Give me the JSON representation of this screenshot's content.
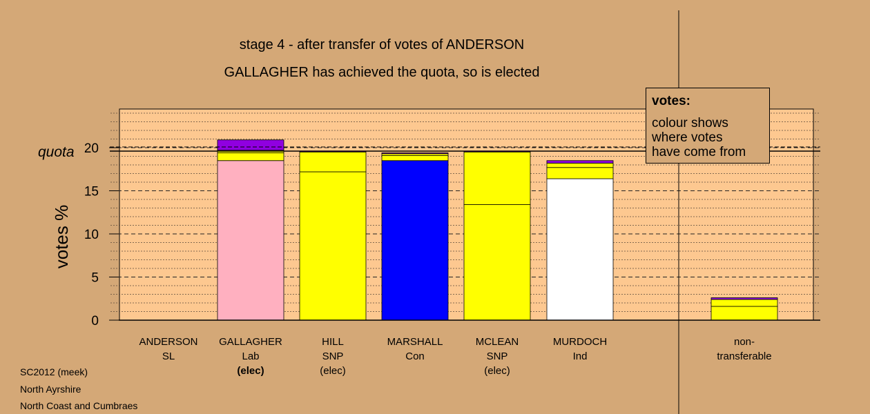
{
  "title_line1": "stage 4 - after transfer of votes of ANDERSON",
  "title_line2": "GALLAGHER has achieved the quota, so is elected",
  "legend": {
    "title": "votes:",
    "lines": [
      "colour shows",
      "where votes",
      "have come from"
    ]
  },
  "footer": [
    "SC2012 (meek)",
    "North Ayrshire",
    "North Coast and Cumbraes"
  ],
  "colors": {
    "background": "#d4a877",
    "plot_bg": "#fdc890",
    "Lab": "#ffb0c0",
    "SNP": "#ffff00",
    "Con": "#0000ff",
    "Ind": "#ffffff",
    "SL": "#9000e0"
  },
  "chart_data": {
    "type": "bar",
    "stacked": true,
    "ylabel": "votes %",
    "ylim": [
      0,
      24
    ],
    "yticks": [
      0,
      5,
      10,
      15,
      20
    ],
    "quota": 19.6,
    "quota_label": "quota",
    "grid": true,
    "candidates": [
      {
        "name": "ANDERSON",
        "party": "SL",
        "status": "",
        "segments": []
      },
      {
        "name": "GALLAGHER",
        "party": "Lab",
        "status": "(elec)",
        "status_bold": true,
        "segments": [
          {
            "from": "Lab",
            "value": 18.5
          },
          {
            "from": "SNP",
            "value": 0.9
          },
          {
            "from": "SNP",
            "value": 0.3
          },
          {
            "from": "SL",
            "value": 1.2
          }
        ]
      },
      {
        "name": "HILL",
        "party": "SNP",
        "status": "(elec)",
        "segments": [
          {
            "from": "SNP",
            "value": 17.2
          },
          {
            "from": "SNP",
            "value": 2.3
          },
          {
            "from": "SL",
            "value": 0.1
          }
        ]
      },
      {
        "name": "MARSHALL",
        "party": "Con",
        "status": "",
        "segments": [
          {
            "from": "Con",
            "value": 18.5
          },
          {
            "from": "SNP",
            "value": 0.6
          },
          {
            "from": "SNP",
            "value": 0.2
          },
          {
            "from": "SL",
            "value": 0.1
          }
        ]
      },
      {
        "name": "MCLEAN",
        "party": "SNP",
        "status": "(elec)",
        "segments": [
          {
            "from": "SNP",
            "value": 13.4
          },
          {
            "from": "SNP",
            "value": 6.1
          },
          {
            "from": "SL",
            "value": 0.1
          }
        ]
      },
      {
        "name": "MURDOCH",
        "party": "Ind",
        "status": "",
        "segments": [
          {
            "from": "Ind",
            "value": 16.4
          },
          {
            "from": "SNP",
            "value": 1.3
          },
          {
            "from": "SNP",
            "value": 0.5
          },
          {
            "from": "SL",
            "value": 0.3
          }
        ]
      },
      {
        "name": "non-",
        "party": "transferable",
        "status": "",
        "nontransferable": true,
        "segments": [
          {
            "from": "SNP",
            "value": 1.6
          },
          {
            "from": "SNP",
            "value": 0.8
          },
          {
            "from": "SL",
            "value": 0.2
          }
        ]
      }
    ]
  }
}
